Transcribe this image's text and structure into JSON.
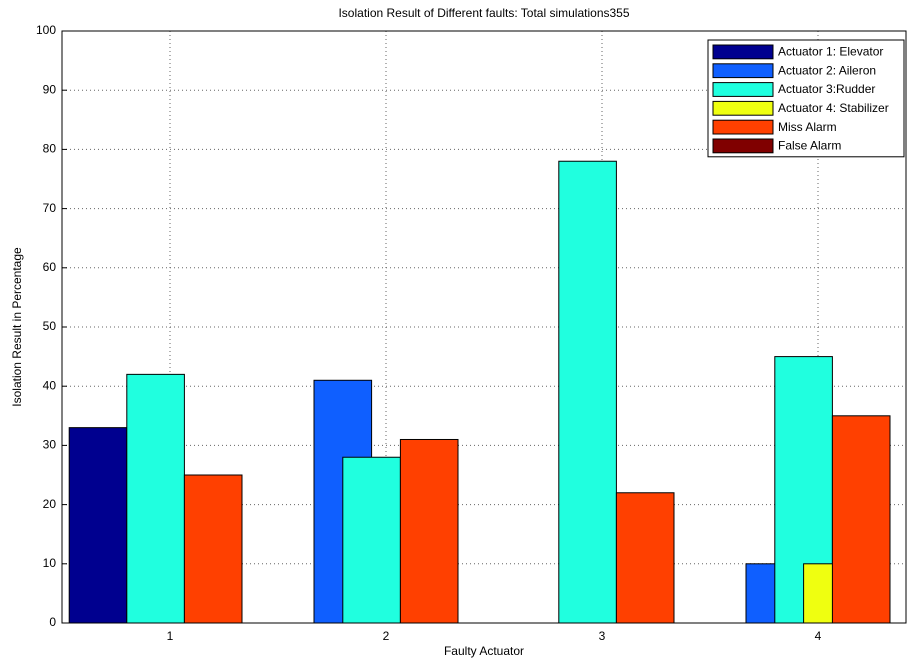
{
  "chart_data": {
    "type": "bar",
    "title": "Isolation Result of Different faults: Total simulations355",
    "x_label": "Faulty Actuator",
    "y_label": "Isolation Result in Percentage",
    "categories": [
      "1",
      "2",
      "3",
      "4"
    ],
    "series": [
      {
        "name": "Actuator 1: Elevator",
        "color": "#00008f",
        "values": [
          33,
          0,
          0,
          0
        ]
      },
      {
        "name": "Actuator 2: Aileron",
        "color": "#0f5fff",
        "values": [
          0,
          41,
          0,
          10
        ]
      },
      {
        "name": "Actuator 3:Rudder",
        "color": "#20ffdf",
        "values": [
          42,
          28,
          78,
          45
        ]
      },
      {
        "name": "Actuator 4: Stabilizer",
        "color": "#efff10",
        "values": [
          0,
          0,
          0,
          10
        ]
      },
      {
        "name": "Miss Alarm",
        "color": "#ff4000",
        "values": [
          25,
          31,
          22,
          35
        ]
      },
      {
        "name": "False Alarm",
        "color": "#800000",
        "values": [
          0,
          0,
          0,
          0
        ]
      }
    ],
    "ylim": [
      0,
      100
    ],
    "yticks": [
      0,
      10,
      20,
      30,
      40,
      50,
      60,
      70,
      80,
      90,
      100
    ],
    "grid": true,
    "legend": "top-right"
  }
}
